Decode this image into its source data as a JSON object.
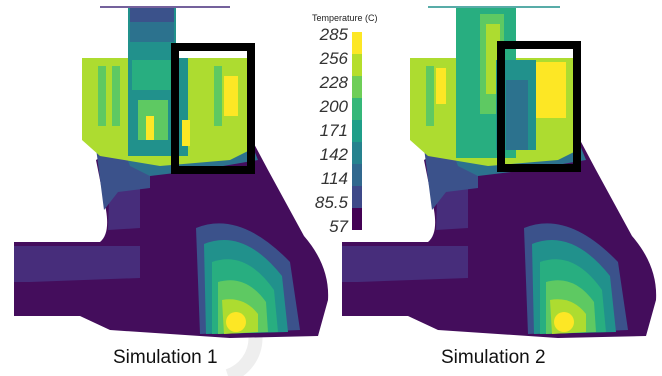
{
  "colorbar": {
    "title": "Temperature (C)",
    "ticks": [
      "285",
      "256",
      "228",
      "200",
      "171",
      "142",
      "114",
      "85.5",
      "57"
    ],
    "range": [
      57,
      285
    ],
    "colors": [
      "#fde725",
      "#b5de2b",
      "#6ece58",
      "#35b779",
      "#1f9e89",
      "#26828e",
      "#31688e",
      "#3e4989",
      "#482878",
      "#440154"
    ]
  },
  "panels": [
    {
      "caption": "Simulation 1"
    },
    {
      "caption": "Simulation 2"
    }
  ],
  "palette": {
    "deep_purple": "#440d5c",
    "purple": "#472d7b",
    "indigo": "#3b528b",
    "blue": "#2c728e",
    "teal": "#21918c",
    "green": "#28ae80",
    "light_green": "#5ec962",
    "lime": "#addc30",
    "yellow": "#fde725",
    "box": "#000000"
  }
}
